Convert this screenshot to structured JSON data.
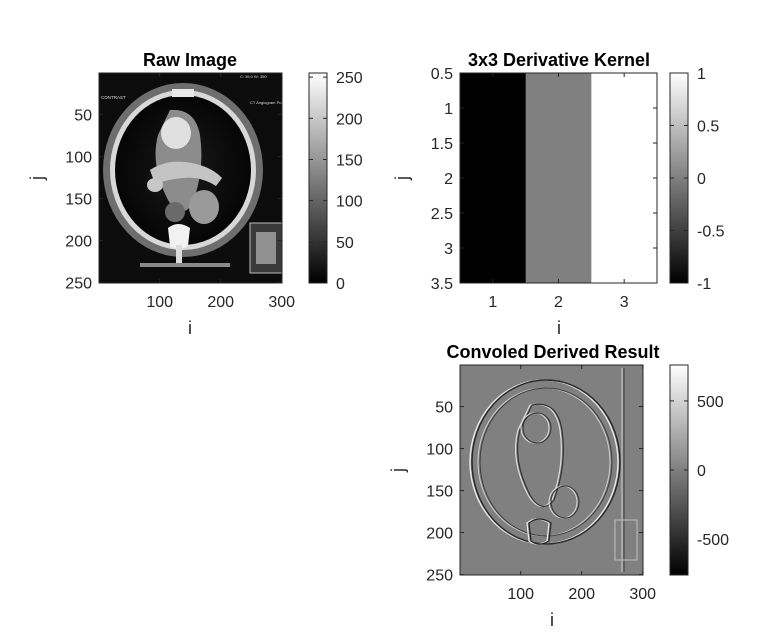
{
  "chart_data": [
    {
      "type": "image",
      "title": "Raw Image",
      "xlabel": "i",
      "ylabel": "j",
      "xlim": [
        0.5,
        300.5
      ],
      "ylim": [
        0.5,
        250.5
      ],
      "y_reversed": true,
      "xticks": [
        100,
        200,
        300
      ],
      "yticks": [
        50,
        100,
        150,
        200,
        250
      ],
      "colormap": "gray",
      "colorbar": {
        "limits": [
          0,
          255
        ],
        "ticks": [
          0,
          50,
          100,
          150,
          200,
          250
        ]
      },
      "image_text": [
        "C: 35.0 W: 350",
        "CONTRAST",
        "CT Angiogram Pulmonar"
      ]
    },
    {
      "type": "heatmap",
      "title": "3x3 Derivative Kernel",
      "xlabel": "i",
      "ylabel": "j",
      "columns": [
        1,
        2,
        3
      ],
      "rows": [
        1,
        2,
        3
      ],
      "values": [
        [
          -1,
          0,
          1
        ],
        [
          -1,
          0,
          1
        ],
        [
          -1,
          0,
          1
        ]
      ],
      "xlim": [
        0.5,
        3.5
      ],
      "ylim": [
        0.5,
        3.5
      ],
      "y_reversed": true,
      "xticks": [
        1,
        2,
        3
      ],
      "yticks": [
        0.5,
        1,
        1.5,
        2,
        2.5,
        3,
        3.5
      ],
      "colormap": "gray",
      "colorbar": {
        "limits": [
          -1,
          1
        ],
        "ticks": [
          -1,
          -0.5,
          0,
          0.5,
          1
        ]
      }
    },
    {
      "type": "image",
      "title": "Convoled Derived Result",
      "xlabel": "i",
      "ylabel": "j",
      "xlim": [
        0.5,
        300.5
      ],
      "ylim": [
        0.5,
        250.5
      ],
      "y_reversed": true,
      "xticks": [
        100,
        200,
        300
      ],
      "yticks": [
        50,
        100,
        150,
        200,
        250
      ],
      "colormap": "gray",
      "colorbar": {
        "limits": [
          -760,
          760
        ],
        "ticks": [
          -500,
          0,
          500
        ]
      }
    }
  ]
}
